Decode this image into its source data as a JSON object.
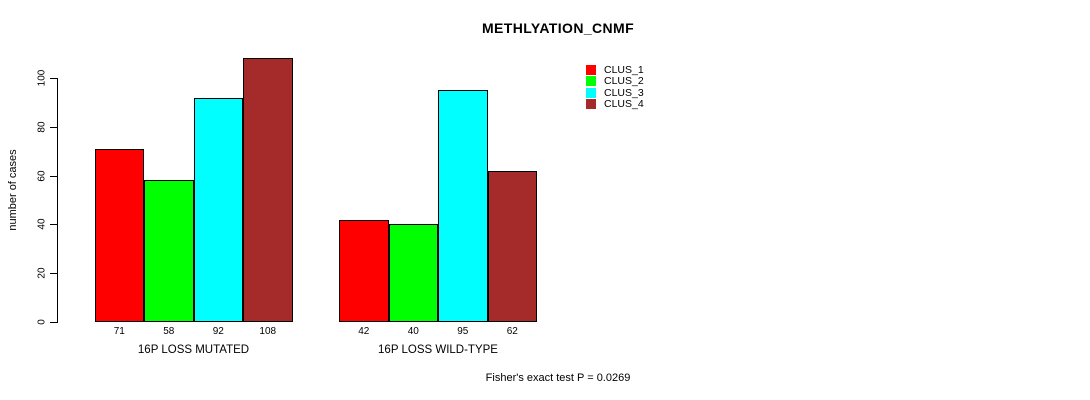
{
  "chart_data": {
    "type": "bar",
    "title": "METHLYATION_CNMF",
    "ylabel": "number of cases",
    "xlabel": "",
    "categories": [
      "16P LOSS MUTATED",
      "16P LOSS WILD-TYPE"
    ],
    "series": [
      {
        "name": "CLUS_1",
        "color": "#FF0000",
        "values": [
          71,
          42
        ]
      },
      {
        "name": "CLUS_2",
        "color": "#00FF00",
        "values": [
          58,
          40
        ]
      },
      {
        "name": "CLUS_3",
        "color": "#00FFFF",
        "values": [
          92,
          95
        ]
      },
      {
        "name": "CLUS_4",
        "color": "#A52A2A",
        "values": [
          108,
          62
        ]
      }
    ],
    "bar_value_labels": [
      [
        71,
        58,
        92,
        108
      ],
      [
        42,
        40,
        95,
        62
      ]
    ],
    "yticks": [
      0,
      20,
      40,
      60,
      80,
      100
    ],
    "ylim": [
      0,
      108
    ],
    "grid": false,
    "legend_position": "top-right",
    "annotation": "Fisher's exact test P = 0.0269"
  },
  "colors": {
    "axis": "#000000",
    "text": "#000000",
    "background": "#FFFFFF"
  }
}
